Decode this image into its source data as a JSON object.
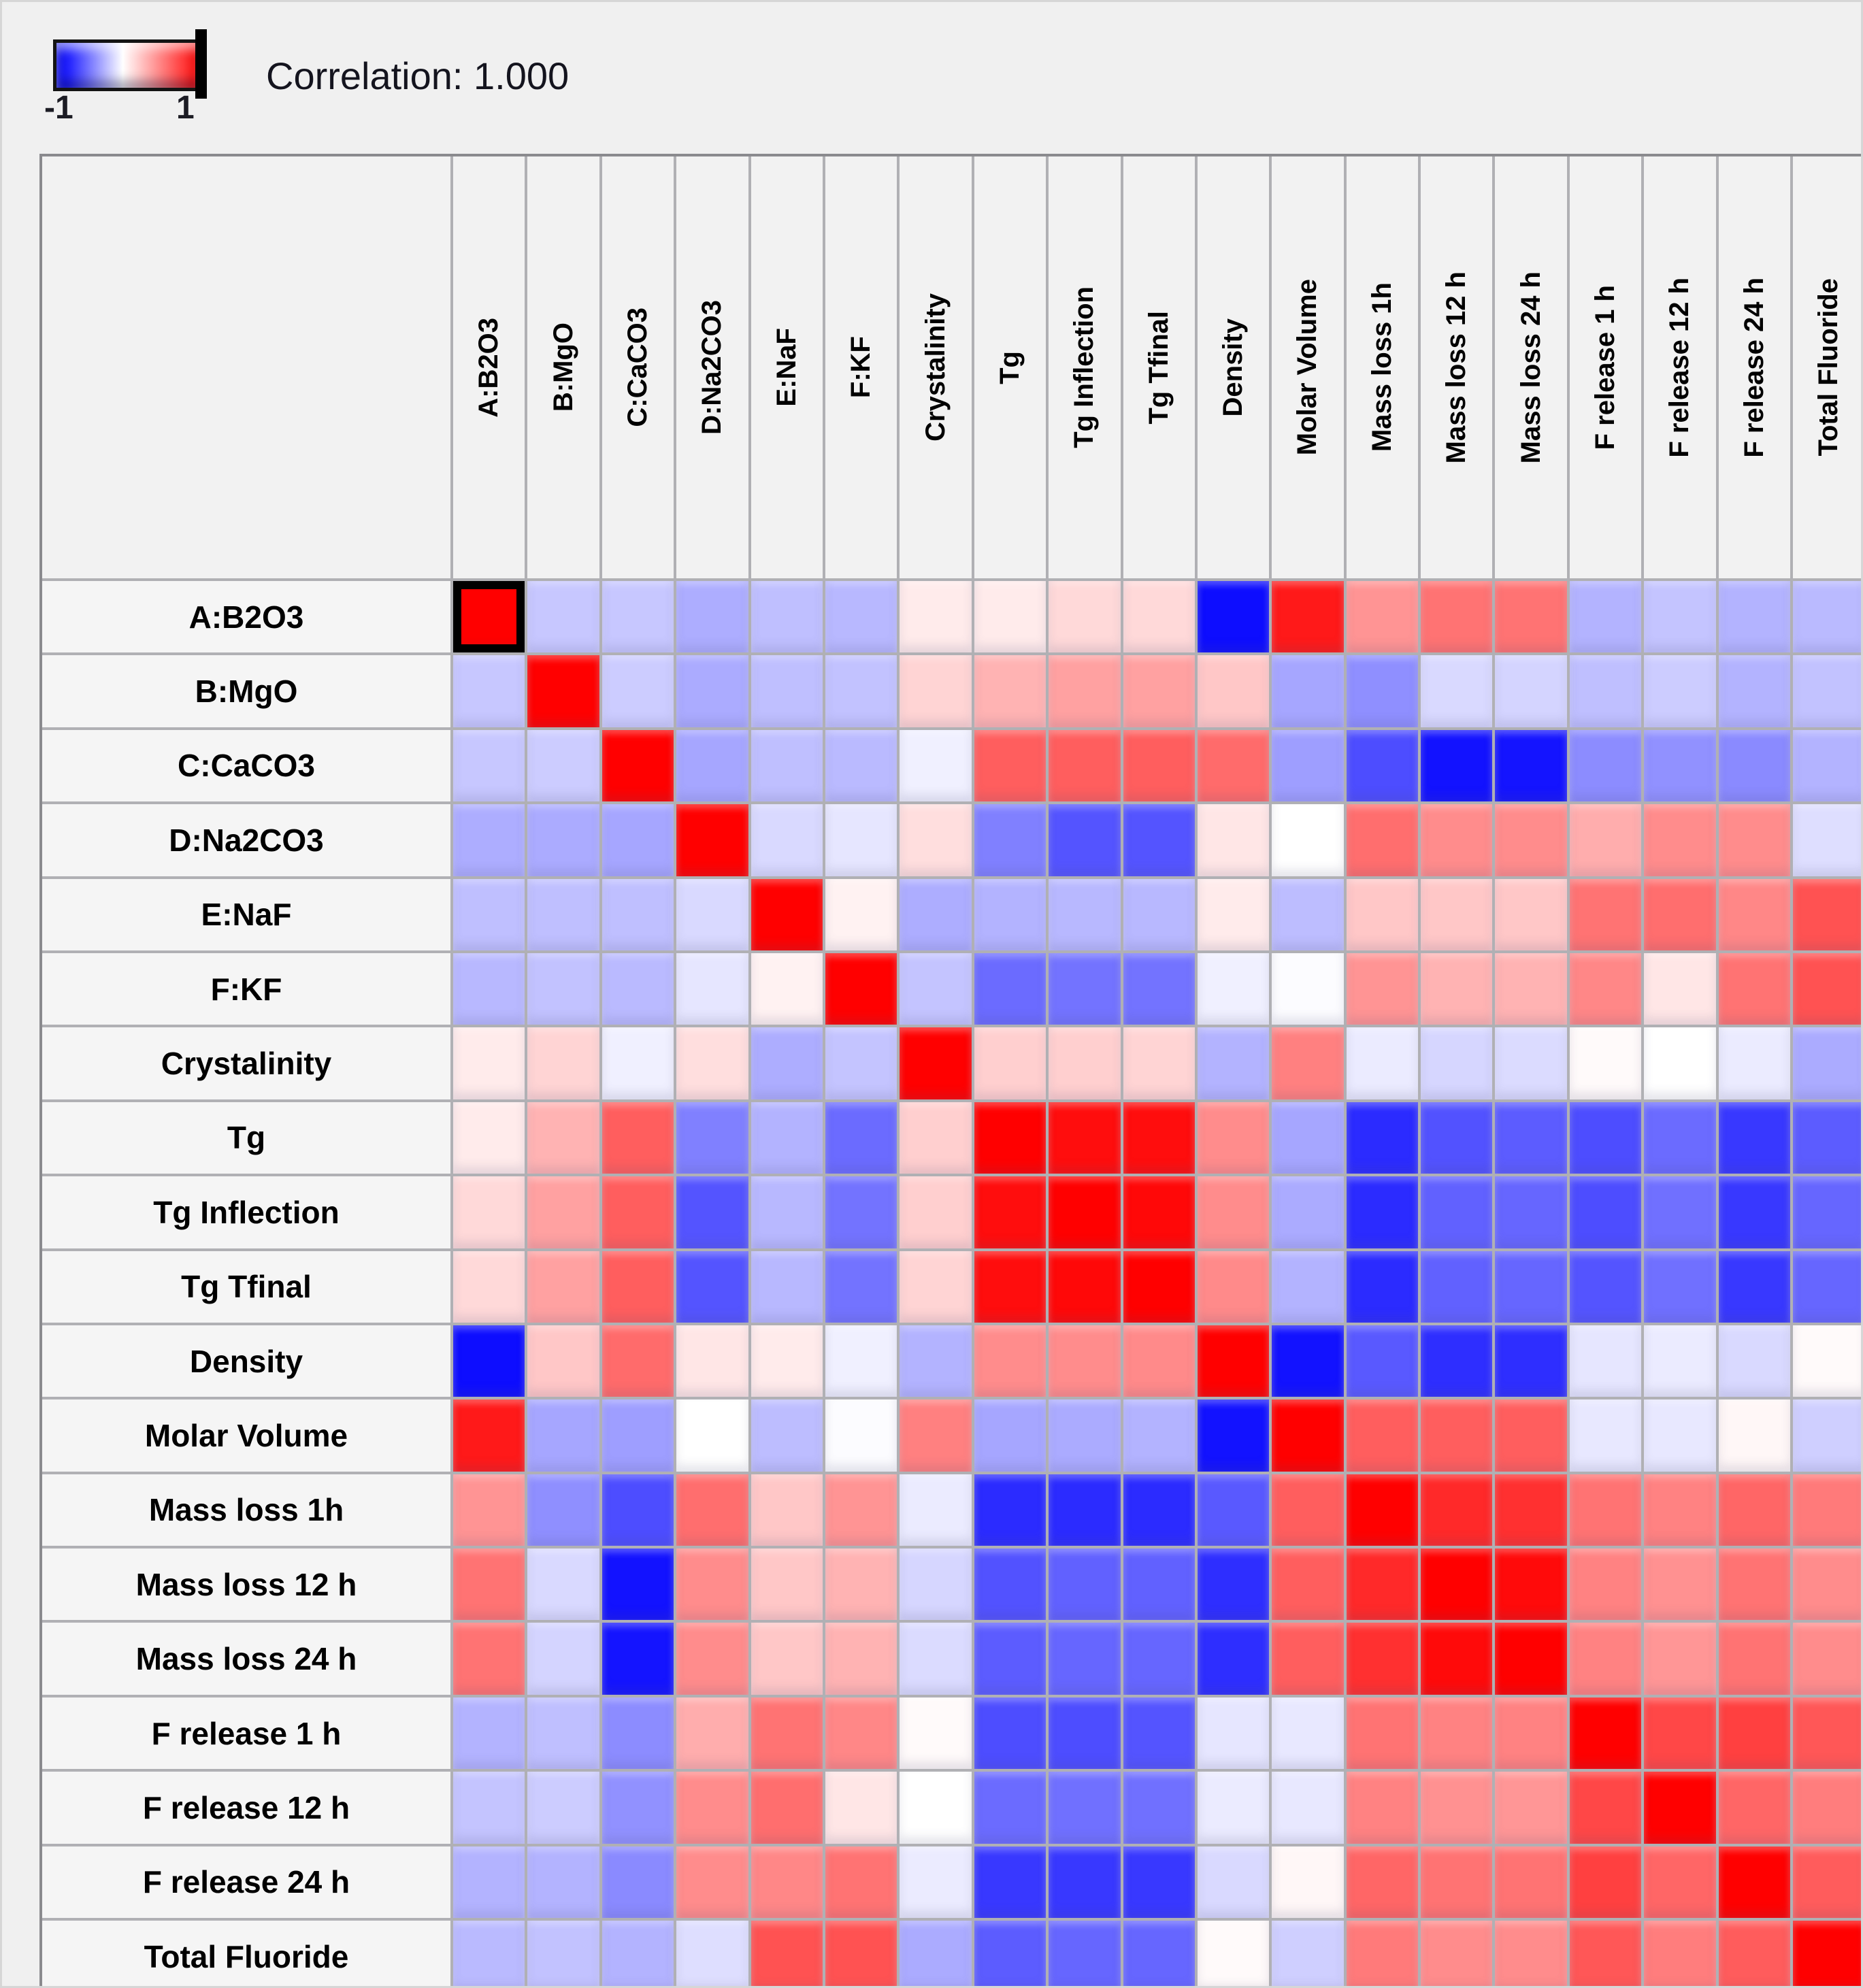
{
  "legend": {
    "min_label": "-1",
    "max_label": "1",
    "readout": "Correlation: 1.000"
  },
  "colors": {
    "negative_end": "#0000ff",
    "zero": "#ffffff",
    "positive_end": "#ff0000",
    "selected_border": "#000000",
    "grid_line": "#b0b0b4",
    "table_border": "#8a8a8e",
    "label_bg": "#f5f5f5",
    "page_bg": "#f0f0f0"
  },
  "chart_data": {
    "type": "heatmap",
    "title": "Correlation: 1.000",
    "legend_position": "top-left",
    "colorbar": {
      "min": -1,
      "max": 1,
      "min_label": "-1",
      "max_label": "1",
      "marker_at": 1
    },
    "selected_cell": {
      "row": "A:B2O3",
      "col": "A:B2O3",
      "value": 1.0
    },
    "variables": [
      "A:B2O3",
      "B:MgO",
      "C:CaCO3",
      "D:Na2CO3",
      "E:NaF",
      "F:KF",
      "Crystalinity",
      "Tg",
      "Tg Inflection",
      "Tg Tfinal",
      "Density",
      "Molar Volume",
      "Mass loss 1h",
      "Mass loss 12 h",
      "Mass loss 24 h",
      "F release 1 h",
      "F release 12 h",
      "F release 24 h",
      "Total Fluoride"
    ],
    "matrix": [
      [
        1.0,
        -0.22,
        -0.22,
        -0.32,
        -0.25,
        -0.28,
        0.08,
        0.08,
        0.15,
        0.15,
        -0.95,
        0.9,
        0.42,
        0.55,
        0.55,
        -0.3,
        -0.23,
        -0.3,
        -0.27
      ],
      [
        -0.22,
        1.0,
        -0.2,
        -0.33,
        -0.25,
        -0.24,
        0.17,
        0.3,
        0.37,
        0.37,
        0.22,
        -0.35,
        -0.44,
        -0.15,
        -0.17,
        -0.25,
        -0.2,
        -0.3,
        -0.24
      ],
      [
        -0.22,
        -0.2,
        1.0,
        -0.35,
        -0.25,
        -0.27,
        -0.06,
        0.63,
        0.63,
        0.63,
        0.58,
        -0.38,
        -0.7,
        -0.93,
        -0.92,
        -0.45,
        -0.43,
        -0.46,
        -0.3
      ],
      [
        -0.32,
        -0.33,
        -0.35,
        1.0,
        -0.15,
        -0.1,
        0.13,
        -0.5,
        -0.67,
        -0.67,
        0.1,
        0.0,
        0.57,
        0.45,
        0.45,
        0.32,
        0.45,
        0.45,
        -0.13
      ],
      [
        -0.25,
        -0.25,
        -0.25,
        -0.15,
        1.0,
        0.05,
        -0.32,
        -0.3,
        -0.28,
        -0.28,
        0.08,
        -0.26,
        0.22,
        0.22,
        0.22,
        0.55,
        0.57,
        0.47,
        0.68
      ],
      [
        -0.28,
        -0.24,
        -0.27,
        -0.1,
        0.05,
        1.0,
        -0.23,
        -0.58,
        -0.55,
        -0.55,
        -0.06,
        -0.01,
        0.42,
        0.3,
        0.3,
        0.47,
        0.1,
        0.55,
        0.68
      ],
      [
        0.08,
        0.17,
        -0.06,
        0.13,
        -0.32,
        -0.23,
        1.0,
        0.19,
        0.19,
        0.17,
        -0.3,
        0.5,
        -0.08,
        -0.16,
        -0.14,
        0.02,
        0.0,
        -0.08,
        -0.33
      ],
      [
        0.08,
        0.3,
        0.63,
        -0.5,
        -0.3,
        -0.58,
        0.19,
        1.0,
        0.95,
        0.95,
        0.45,
        -0.35,
        -0.83,
        -0.68,
        -0.64,
        -0.7,
        -0.58,
        -0.78,
        -0.64
      ],
      [
        0.15,
        0.37,
        0.63,
        -0.67,
        -0.28,
        -0.55,
        0.19,
        0.95,
        1.0,
        0.97,
        0.45,
        -0.33,
        -0.83,
        -0.62,
        -0.6,
        -0.7,
        -0.56,
        -0.78,
        -0.6
      ],
      [
        0.15,
        0.37,
        0.63,
        -0.67,
        -0.28,
        -0.55,
        0.17,
        0.95,
        0.97,
        1.0,
        0.46,
        -0.3,
        -0.83,
        -0.62,
        -0.6,
        -0.67,
        -0.56,
        -0.78,
        -0.6
      ],
      [
        -0.95,
        0.22,
        0.58,
        0.1,
        0.08,
        -0.06,
        -0.3,
        0.45,
        0.45,
        0.46,
        1.0,
        -0.93,
        -0.65,
        -0.82,
        -0.82,
        -0.1,
        -0.08,
        -0.15,
        0.02
      ],
      [
        0.9,
        -0.35,
        -0.38,
        0.0,
        -0.26,
        -0.01,
        0.5,
        -0.35,
        -0.33,
        -0.3,
        -0.93,
        1.0,
        0.63,
        0.63,
        0.63,
        -0.09,
        -0.09,
        0.03,
        -0.19
      ],
      [
        0.42,
        -0.44,
        -0.7,
        0.57,
        0.22,
        0.42,
        -0.08,
        -0.83,
        -0.83,
        -0.83,
        -0.65,
        0.63,
        1.0,
        0.84,
        0.81,
        0.55,
        0.49,
        0.6,
        0.52
      ],
      [
        0.55,
        -0.15,
        -0.93,
        0.45,
        0.22,
        0.3,
        -0.16,
        -0.68,
        -0.62,
        -0.62,
        -0.82,
        0.63,
        0.84,
        1.0,
        0.96,
        0.49,
        0.43,
        0.55,
        0.45
      ],
      [
        0.55,
        -0.17,
        -0.92,
        0.45,
        0.22,
        0.3,
        -0.14,
        -0.64,
        -0.6,
        -0.6,
        -0.82,
        0.63,
        0.81,
        0.96,
        1.0,
        0.49,
        0.41,
        0.55,
        0.45
      ],
      [
        -0.3,
        -0.25,
        -0.45,
        0.32,
        0.55,
        0.47,
        0.02,
        -0.7,
        -0.7,
        -0.67,
        -0.1,
        -0.09,
        0.55,
        0.49,
        0.49,
        1.0,
        0.72,
        0.75,
        0.66
      ],
      [
        -0.23,
        -0.2,
        -0.43,
        0.45,
        0.57,
        0.1,
        0.0,
        -0.58,
        -0.56,
        -0.56,
        -0.08,
        -0.09,
        0.49,
        0.43,
        0.41,
        0.72,
        1.0,
        0.6,
        0.51
      ],
      [
        -0.3,
        -0.3,
        -0.46,
        0.45,
        0.47,
        0.55,
        -0.08,
        -0.78,
        -0.78,
        -0.78,
        -0.15,
        0.03,
        0.6,
        0.55,
        0.55,
        0.75,
        0.6,
        1.0,
        0.64
      ],
      [
        -0.27,
        -0.24,
        -0.3,
        -0.13,
        0.68,
        0.68,
        -0.33,
        -0.64,
        -0.6,
        -0.6,
        0.02,
        -0.19,
        0.52,
        0.45,
        0.45,
        0.66,
        0.51,
        0.64,
        1.0
      ]
    ]
  }
}
